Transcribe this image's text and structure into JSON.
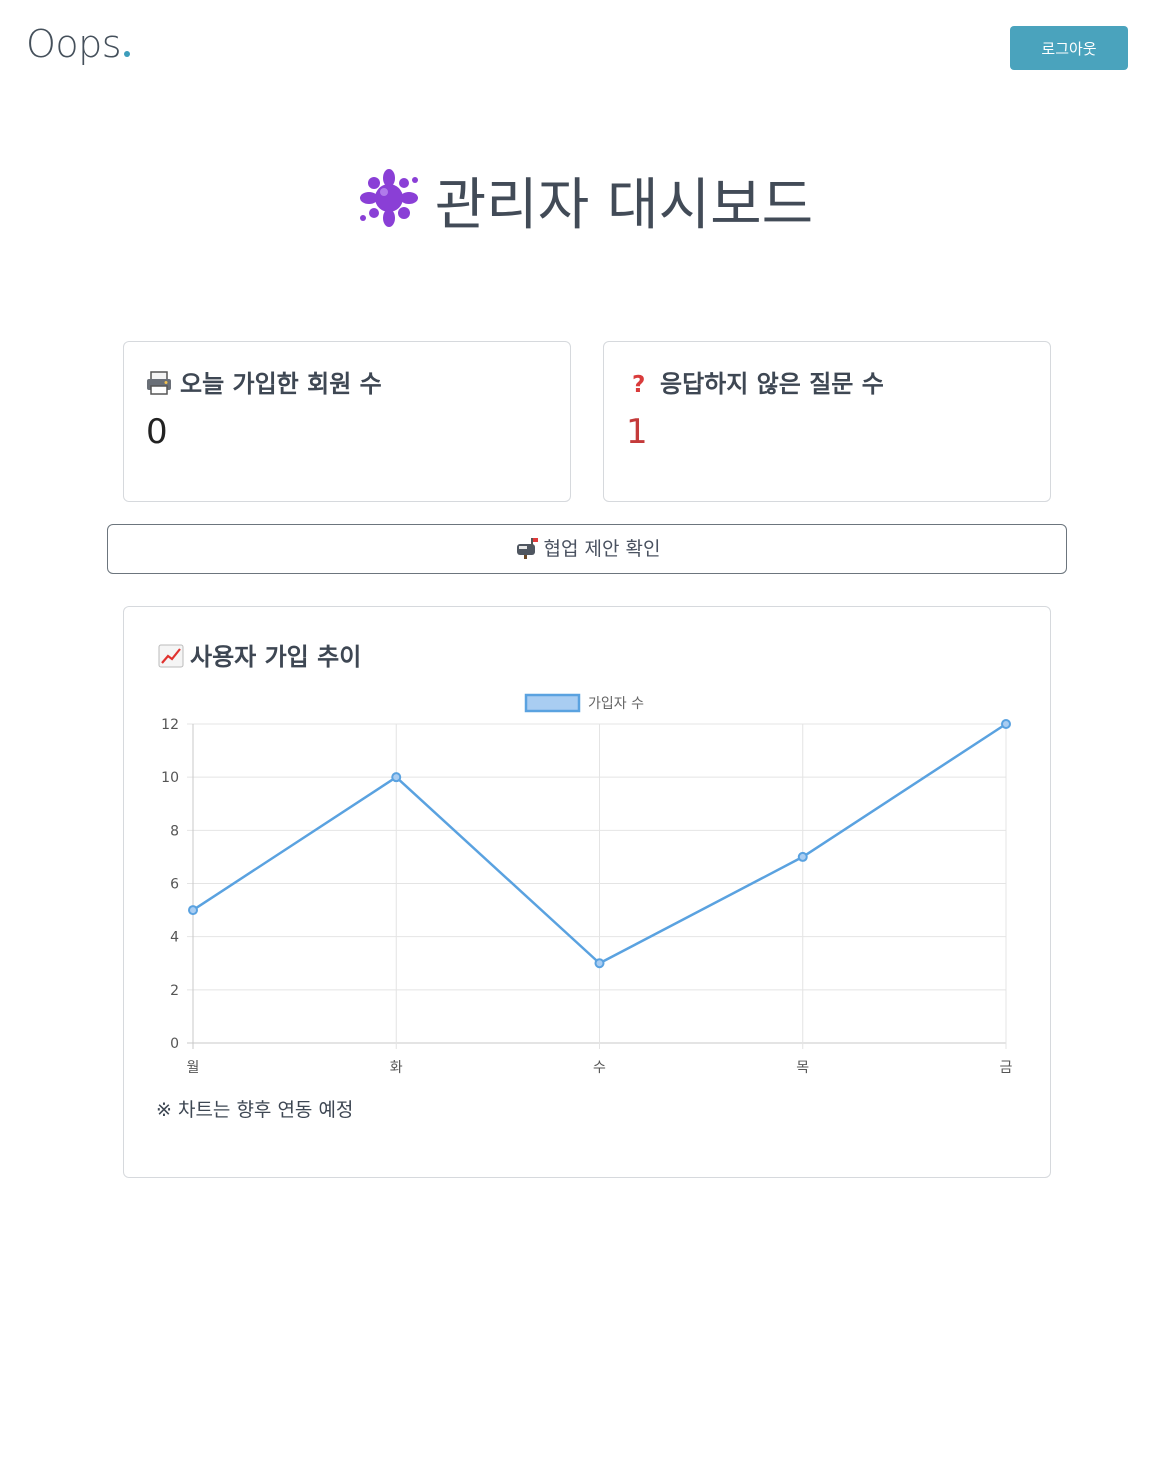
{
  "header": {
    "brand": "Oops",
    "logout_label": "로그아웃"
  },
  "page": {
    "title": "관리자 대시보드"
  },
  "stats": [
    {
      "label": "오늘 가입한 회원 수",
      "value": "0",
      "icon": "printer-icon"
    },
    {
      "label": "응답하지 않은 질문 수",
      "value": "1",
      "icon": "question-mark-icon",
      "value_color": "#c43a3a"
    }
  ],
  "collab_button": {
    "label": "협업 제안 확인",
    "icon": "mailbox-icon"
  },
  "chart_card": {
    "title": "사용자 가입 추이",
    "icon": "chart-increasing-icon",
    "note": "※ 차트는 향후 연동 예정"
  },
  "colors": {
    "accent": "#4aa3bd",
    "series_line": "#5aa2e0",
    "series_fill": "#a9cdf2",
    "alert": "#c43a3a"
  },
  "chart_data": {
    "type": "line",
    "categories": [
      "월",
      "화",
      "수",
      "목",
      "금"
    ],
    "series": [
      {
        "name": "가입자 수",
        "values": [
          5,
          10,
          3,
          7,
          12
        ]
      }
    ],
    "ylim": [
      0,
      12
    ],
    "yticks": [
      0,
      2,
      4,
      6,
      8,
      10,
      12
    ],
    "grid": true,
    "legend": "top-center",
    "title": "",
    "xlabel": "",
    "ylabel": ""
  }
}
